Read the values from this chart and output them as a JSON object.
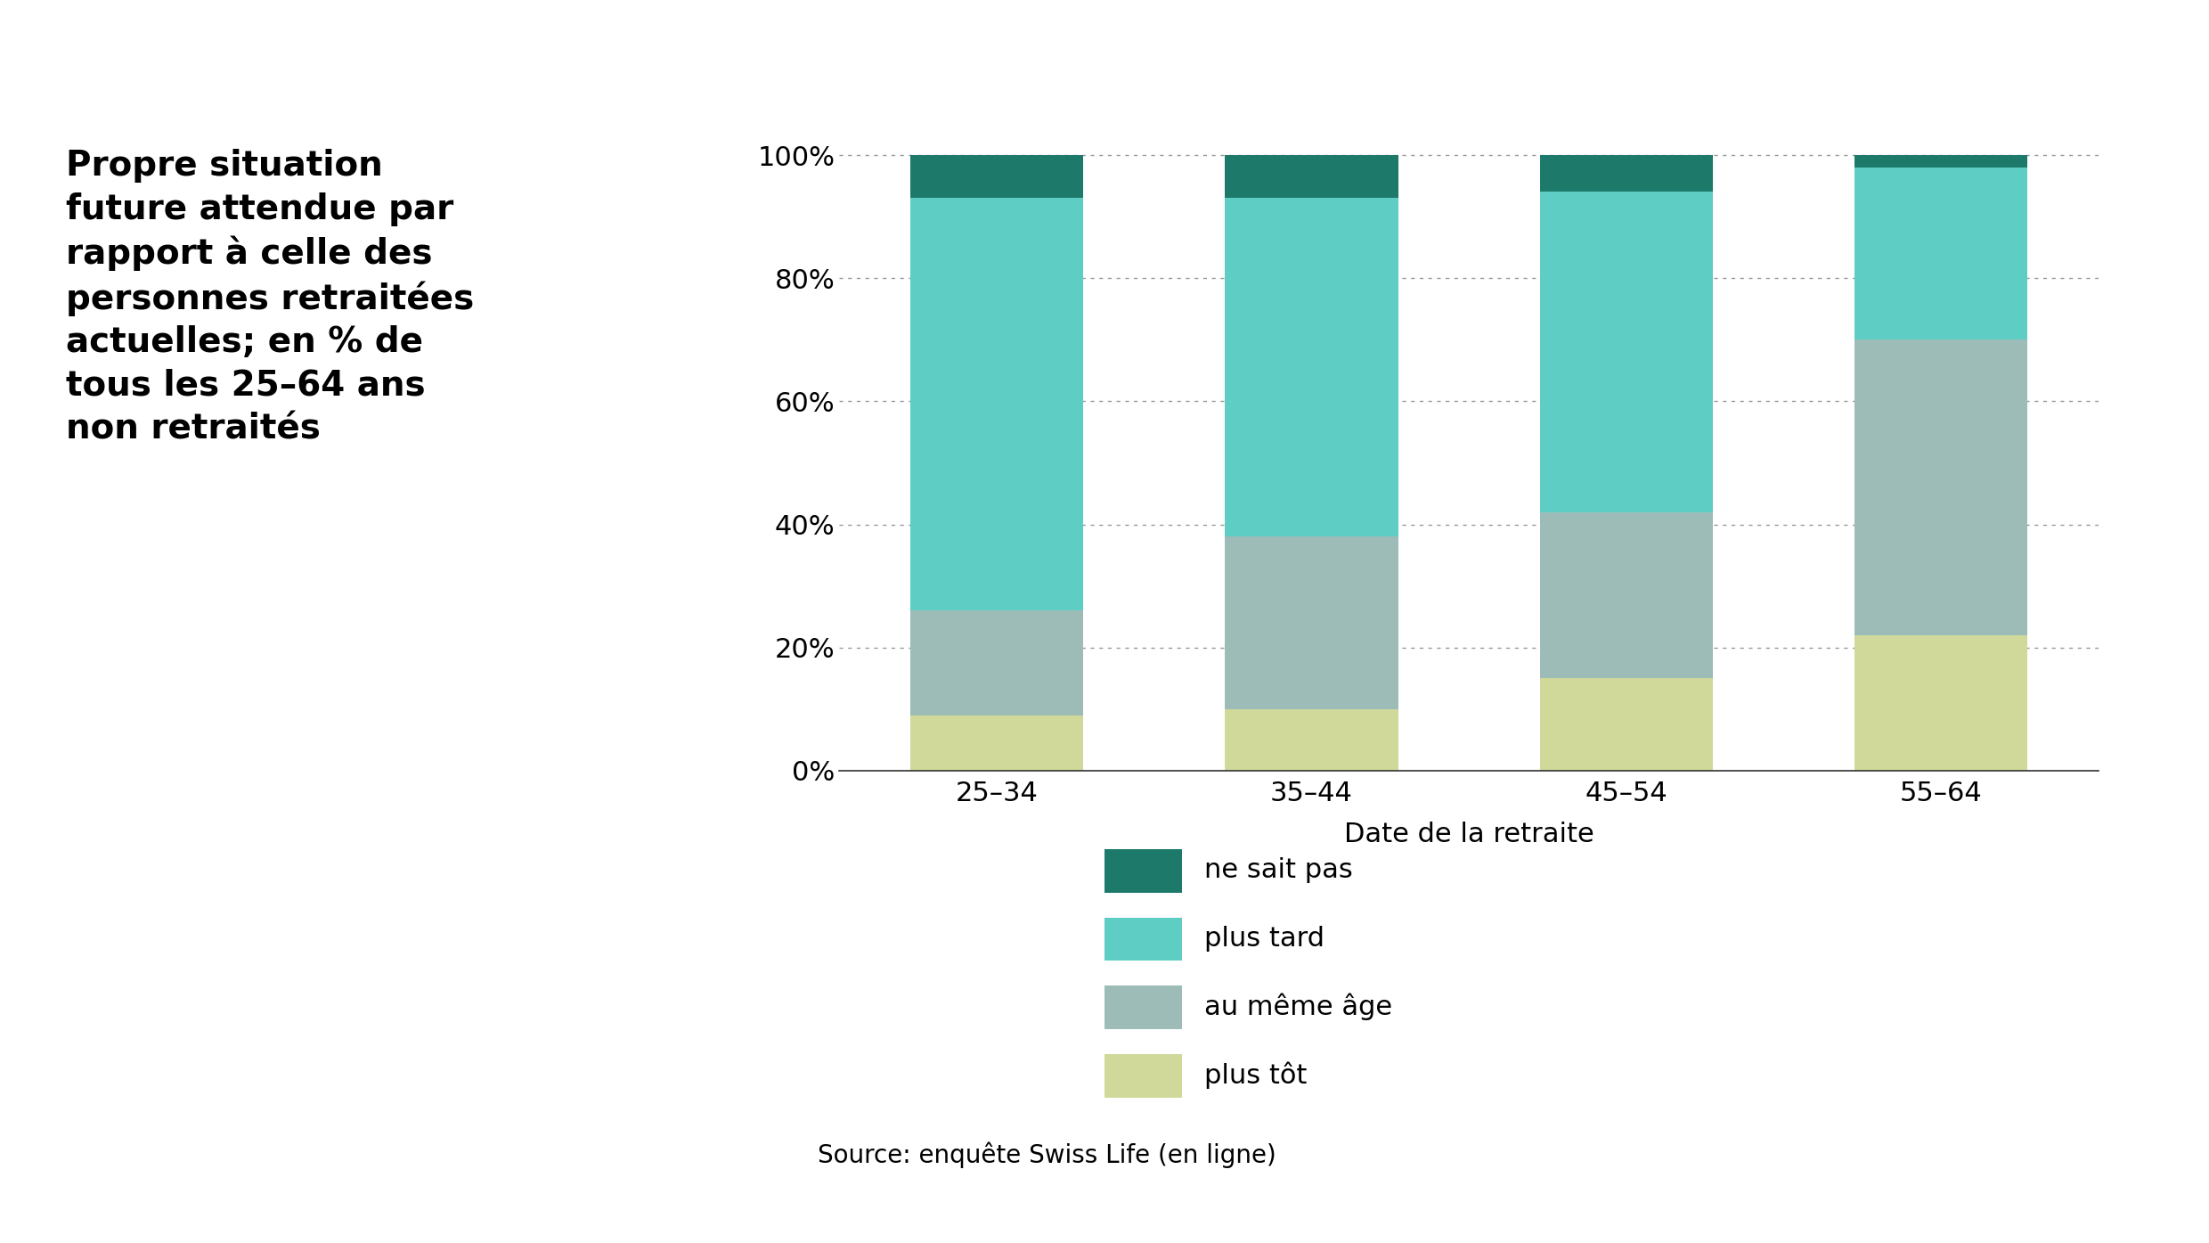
{
  "categories": [
    "25–34",
    "35–44",
    "45–54",
    "55–64"
  ],
  "series": {
    "ne sait pas": [
      7,
      7,
      6,
      2
    ],
    "plus tard": [
      67,
      55,
      52,
      28
    ],
    "au même âge": [
      17,
      28,
      27,
      48
    ],
    "plus tôt": [
      9,
      10,
      15,
      22
    ]
  },
  "colors": {
    "ne sait pas": "#1d7a6a",
    "plus tard": "#5ecdc4",
    "au même âge": "#9dbcb8",
    "plus tôt": "#d0d99a"
  },
  "xlabel": "Date de la retraite",
  "source": "Source: enquête Swiss Life (en ligne)",
  "title_text": "Propre situation\nfuture attendue par\nrapport à celle des\npersonnes retraitées\nactuelles; en % de\ntous les 25–64 ans\nnon retraités",
  "legend_order": [
    "ne sait pas",
    "plus tard",
    "au même âge",
    "plus tôt"
  ],
  "yticks": [
    0,
    20,
    40,
    60,
    80,
    100
  ],
  "bar_width": 0.55,
  "background_color": "#ffffff",
  "title_fontsize": 28,
  "tick_fontsize": 22,
  "xlabel_fontsize": 22,
  "legend_fontsize": 22,
  "source_fontsize": 20
}
